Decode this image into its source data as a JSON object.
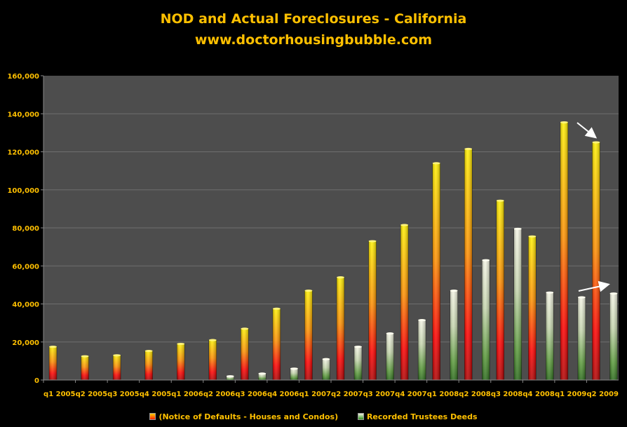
{
  "chart_data": {
    "type": "bar",
    "title": "NOD and Actual Foreclosures - California",
    "subtitle": "www.doctorhousingbubble.com",
    "categories": [
      "q1 2005",
      "q2 2005",
      "q3 2005",
      "q4 2005",
      "q1 2006",
      "q2 2006",
      "q3 2006",
      "q4 2006",
      "q1 2007",
      "q2 2007",
      "q3 2007",
      "q4 2007",
      "q1 2008",
      "q2 2008",
      "q3 2008",
      "q4 2008",
      "q1 2009",
      "q2 2009"
    ],
    "series": [
      {
        "name": "(Notice of Defaults - Houses and Condos)",
        "values": [
          17500,
          12500,
          13000,
          15300,
          19000,
          21000,
          27000,
          37500,
          47000,
          54000,
          73000,
          81500,
          114000,
          121500,
          94300,
          75500,
          135500,
          125000
        ],
        "color": "#FF2200"
      },
      {
        "name": "Recorded Trustees Deeds",
        "values": [
          0,
          0,
          0,
          0,
          0,
          2000,
          3400,
          6000,
          11000,
          17500,
          24500,
          31500,
          47000,
          63000,
          79500,
          46000,
          43500,
          45500
        ],
        "color": "#338822"
      }
    ],
    "ylim": [
      0,
      160000
    ],
    "yticks": [
      0,
      20000,
      40000,
      60000,
      80000,
      100000,
      120000,
      140000,
      160000
    ],
    "ytick_labels": [
      "0",
      "20,000",
      "40,000",
      "60,000",
      "80,000",
      "100,000",
      "120,000",
      "140,000",
      "160,000"
    ],
    "grid": true,
    "legend_position": "bottom",
    "colors": {
      "background": "#000000",
      "plot_area": "#4D4D4D",
      "text": "#FFC000",
      "gridline": "#707070"
    }
  }
}
